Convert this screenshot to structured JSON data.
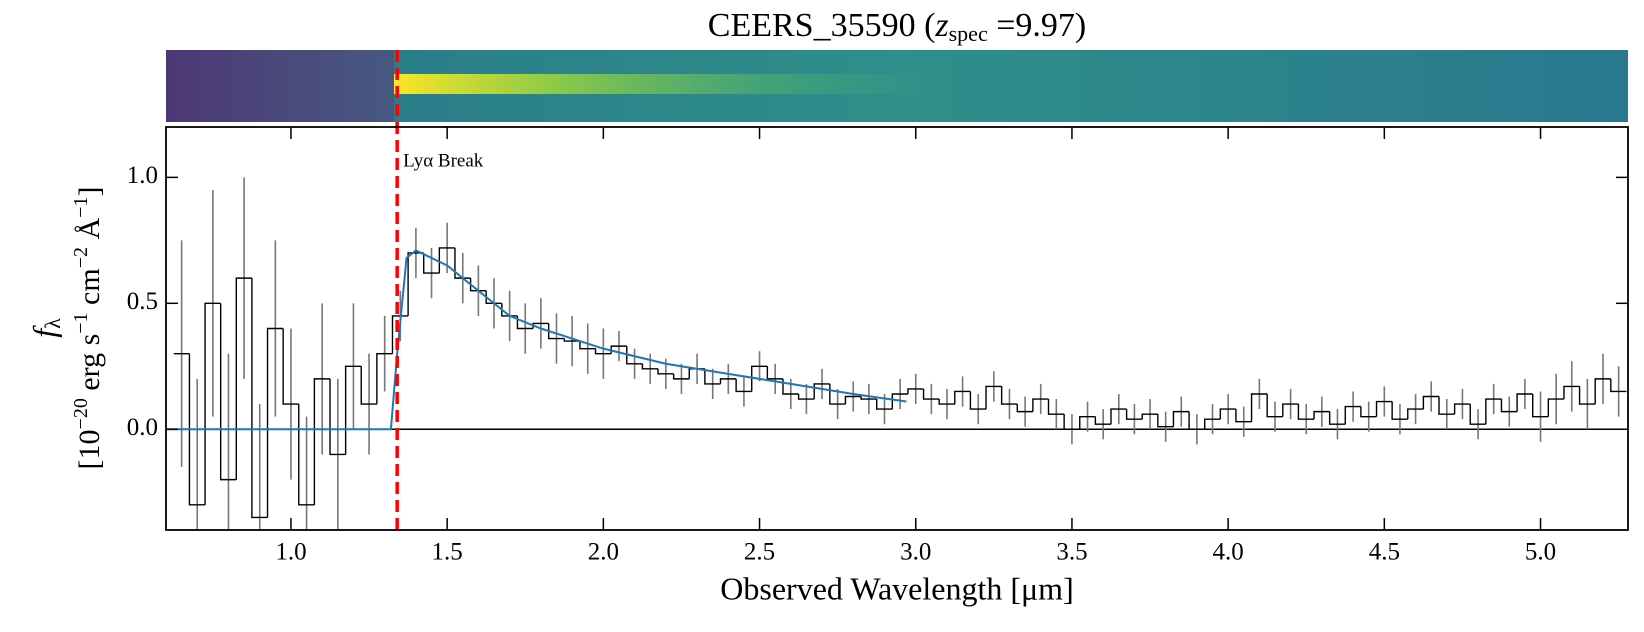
{
  "chart_data": {
    "type": "spectrum",
    "title": {
      "prefix": "CEERS_35590 (",
      "symbol": "z",
      "subscript": "spec",
      "suffix": " =9.97)"
    },
    "xlabel": "Observed Wavelength [μm]",
    "ylabel": {
      "symbol": "f",
      "symbol_sub": "λ",
      "units": [
        "[10",
        "−20",
        " erg s",
        "−1",
        " cm",
        "−2",
        " Å",
        "−1",
        "]"
      ]
    },
    "xlim": [
      0.6,
      5.28
    ],
    "ylim": [
      -0.4,
      1.2
    ],
    "xticks": [
      {
        "value": 1,
        "label": "1.0"
      },
      {
        "value": 1.5,
        "label": "1.5"
      },
      {
        "value": 2,
        "label": "2.0"
      },
      {
        "value": 2.5,
        "label": "2.5"
      },
      {
        "value": 3,
        "label": "3.0"
      },
      {
        "value": 3.5,
        "label": "3.5"
      },
      {
        "value": 4,
        "label": "4.0"
      },
      {
        "value": 4.5,
        "label": "4.5"
      },
      {
        "value": 5,
        "label": "5.0"
      }
    ],
    "yticks": [
      {
        "value": 0,
        "label": "0.0"
      },
      {
        "value": 0.5,
        "label": "0.5"
      },
      {
        "value": 1,
        "label": "1.0"
      }
    ],
    "hline": 0,
    "annotation": {
      "text": "Lyα Break",
      "x": 1.34,
      "color": "#ff0000"
    },
    "spectrum": {
      "color": "#000000",
      "error_color": "#777777",
      "step": 0.05,
      "x": [
        0.65,
        0.7,
        0.75,
        0.8,
        0.85,
        0.9,
        0.95,
        1.0,
        1.05,
        1.1,
        1.15,
        1.2,
        1.25,
        1.3,
        1.35,
        1.4,
        1.45,
        1.5,
        1.55,
        1.6,
        1.65,
        1.7,
        1.75,
        1.8,
        1.85,
        1.9,
        1.95,
        2.0,
        2.05,
        2.1,
        2.15,
        2.2,
        2.25,
        2.3,
        2.35,
        2.4,
        2.45,
        2.5,
        2.55,
        2.6,
        2.65,
        2.7,
        2.75,
        2.8,
        2.85,
        2.9,
        2.95,
        3.0,
        3.05,
        3.1,
        3.15,
        3.2,
        3.25,
        3.3,
        3.35,
        3.4,
        3.45,
        3.5,
        3.55,
        3.6,
        3.65,
        3.7,
        3.75,
        3.8,
        3.85,
        3.9,
        3.95,
        4.0,
        4.05,
        4.1,
        4.15,
        4.2,
        4.25,
        4.3,
        4.35,
        4.4,
        4.45,
        4.5,
        4.55,
        4.6,
        4.65,
        4.7,
        4.75,
        4.8,
        4.85,
        4.9,
        4.95,
        5.0,
        5.05,
        5.1,
        5.15,
        5.2,
        5.25
      ],
      "values": [
        0.3,
        -0.3,
        0.5,
        -0.2,
        0.6,
        -0.35,
        0.4,
        0.1,
        -0.3,
        0.2,
        -0.1,
        0.25,
        0.1,
        0.3,
        0.45,
        0.7,
        0.62,
        0.72,
        0.6,
        0.55,
        0.5,
        0.45,
        0.4,
        0.42,
        0.36,
        0.35,
        0.32,
        0.3,
        0.33,
        0.26,
        0.24,
        0.22,
        0.2,
        0.24,
        0.18,
        0.2,
        0.15,
        0.25,
        0.2,
        0.14,
        0.12,
        0.18,
        0.1,
        0.13,
        0.12,
        0.08,
        0.14,
        0.16,
        0.12,
        0.1,
        0.15,
        0.08,
        0.17,
        0.1,
        0.07,
        0.12,
        0.06,
        0.0,
        0.05,
        0.02,
        0.08,
        0.04,
        0.06,
        0.01,
        0.07,
        0.0,
        0.04,
        0.08,
        0.03,
        0.14,
        0.05,
        0.1,
        0.04,
        0.07,
        0.02,
        0.09,
        0.05,
        0.11,
        0.04,
        0.08,
        0.13,
        0.06,
        0.1,
        0.02,
        0.12,
        0.07,
        0.14,
        0.05,
        0.12,
        0.17,
        0.1,
        0.2,
        0.15
      ],
      "errors": [
        0.45,
        0.5,
        0.45,
        0.5,
        0.4,
        0.45,
        0.35,
        0.3,
        0.35,
        0.3,
        0.3,
        0.25,
        0.2,
        0.15,
        0.1,
        0.1,
        0.1,
        0.1,
        0.1,
        0.1,
        0.1,
        0.1,
        0.1,
        0.1,
        0.1,
        0.1,
        0.1,
        0.1,
        0.06,
        0.06,
        0.06,
        0.06,
        0.06,
        0.06,
        0.06,
        0.06,
        0.06,
        0.06,
        0.06,
        0.06,
        0.06,
        0.06,
        0.06,
        0.06,
        0.06,
        0.06,
        0.06,
        0.06,
        0.06,
        0.06,
        0.06,
        0.06,
        0.06,
        0.06,
        0.06,
        0.06,
        0.06,
        0.06,
        0.06,
        0.06,
        0.06,
        0.06,
        0.06,
        0.06,
        0.06,
        0.06,
        0.06,
        0.06,
        0.06,
        0.06,
        0.06,
        0.06,
        0.06,
        0.06,
        0.06,
        0.06,
        0.06,
        0.06,
        0.06,
        0.06,
        0.06,
        0.06,
        0.06,
        0.06,
        0.06,
        0.06,
        0.06,
        0.1,
        0.1,
        0.1,
        0.1,
        0.1,
        0.1
      ]
    },
    "model": {
      "color": "#1f77b4",
      "x": [
        0.6,
        1.32,
        1.34,
        1.37,
        1.4,
        1.5,
        1.6,
        1.7,
        1.8,
        1.9,
        2.0,
        2.2,
        2.4,
        2.6,
        2.8,
        2.97
      ],
      "values": [
        0,
        0,
        0.3,
        0.68,
        0.71,
        0.65,
        0.55,
        0.45,
        0.4,
        0.36,
        0.32,
        0.26,
        0.22,
        0.18,
        0.14,
        0.11
      ]
    }
  }
}
